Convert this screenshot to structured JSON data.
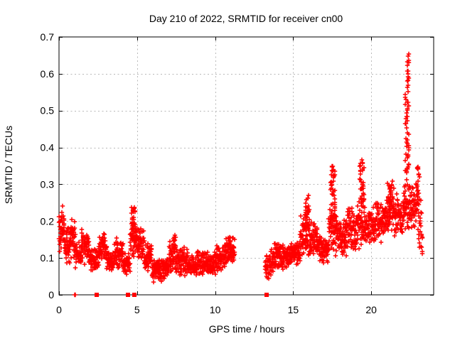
{
  "chart_data": {
    "type": "scatter",
    "title": "Day 210 of 2022, SRMTID for receiver cn00",
    "xlabel": "GPS time / hours",
    "ylabel": "SRMTID / TECUs",
    "xlim": [
      0,
      24
    ],
    "ylim": [
      0,
      0.7
    ],
    "xticks": [
      0,
      5,
      10,
      15,
      20
    ],
    "yticks": [
      0,
      0.1,
      0.2,
      0.3,
      0.4,
      0.5,
      0.6,
      0.7
    ],
    "xtick_labels": [
      "0",
      "5",
      "10",
      "15",
      "20"
    ],
    "ytick_labels": [
      "0",
      "0.1",
      "0.2",
      "0.3",
      "0.4",
      "0.5",
      "0.6",
      "0.7"
    ],
    "grid": true,
    "legend": "none",
    "marker": {
      "glyph": "plus",
      "color": "#ff0000",
      "size": 6.4
    },
    "grid_color": "#b9b9b9",
    "border_color": "#000000",
    "data_gap_hours": [
      11.25,
      13.2
    ],
    "seed": 42,
    "bands": [
      [
        0.0,
        0.35,
        0.1,
        0.25,
        45
      ],
      [
        0.35,
        0.7,
        0.08,
        0.19,
        40
      ],
      [
        0.7,
        1.05,
        0.09,
        0.21,
        40
      ],
      [
        1.05,
        1.45,
        0.07,
        0.15,
        45
      ],
      [
        1.45,
        1.95,
        0.08,
        0.18,
        55
      ],
      [
        1.95,
        2.55,
        0.06,
        0.13,
        65
      ],
      [
        2.55,
        3.05,
        0.08,
        0.17,
        55
      ],
      [
        3.05,
        3.55,
        0.06,
        0.12,
        55
      ],
      [
        3.55,
        4.1,
        0.07,
        0.16,
        60
      ],
      [
        4.1,
        4.55,
        0.05,
        0.12,
        50
      ],
      [
        4.55,
        5.0,
        0.09,
        0.22,
        50
      ],
      [
        5.0,
        5.45,
        0.09,
        0.19,
        50
      ],
      [
        5.45,
        5.95,
        0.06,
        0.14,
        55
      ],
      [
        5.95,
        6.55,
        0.03,
        0.1,
        65
      ],
      [
        6.55,
        7.05,
        0.04,
        0.11,
        55
      ],
      [
        7.05,
        7.65,
        0.05,
        0.15,
        65
      ],
      [
        7.65,
        8.25,
        0.05,
        0.13,
        65
      ],
      [
        8.25,
        8.85,
        0.04,
        0.11,
        65
      ],
      [
        8.85,
        9.45,
        0.05,
        0.13,
        65
      ],
      [
        9.45,
        10.05,
        0.05,
        0.12,
        65
      ],
      [
        10.05,
        10.65,
        0.06,
        0.14,
        65
      ],
      [
        10.65,
        11.25,
        0.07,
        0.16,
        65
      ],
      [
        13.2,
        13.75,
        0.04,
        0.13,
        55
      ],
      [
        13.75,
        14.35,
        0.06,
        0.15,
        65
      ],
      [
        14.35,
        14.95,
        0.07,
        0.14,
        65
      ],
      [
        14.95,
        15.45,
        0.08,
        0.15,
        55
      ],
      [
        15.45,
        16.05,
        0.1,
        0.22,
        65
      ],
      [
        16.05,
        16.55,
        0.1,
        0.2,
        55
      ],
      [
        16.55,
        17.25,
        0.08,
        0.16,
        75
      ],
      [
        17.25,
        17.85,
        0.1,
        0.24,
        65
      ],
      [
        17.85,
        18.45,
        0.1,
        0.22,
        65
      ],
      [
        18.45,
        19.05,
        0.11,
        0.26,
        65
      ],
      [
        19.05,
        19.65,
        0.12,
        0.28,
        65
      ],
      [
        19.65,
        20.25,
        0.13,
        0.25,
        65
      ],
      [
        20.25,
        20.85,
        0.14,
        0.26,
        65
      ],
      [
        20.85,
        21.45,
        0.15,
        0.29,
        65
      ],
      [
        21.45,
        22.05,
        0.15,
        0.28,
        65
      ],
      [
        22.05,
        22.55,
        0.17,
        0.32,
        60
      ],
      [
        22.55,
        23.0,
        0.17,
        0.33,
        50
      ],
      [
        23.0,
        23.3,
        0.1,
        0.3,
        25
      ]
    ],
    "spikes": [
      [
        4.75,
        0.12,
        0.16,
        0.24,
        30
      ],
      [
        7.4,
        0.1,
        0.12,
        0.17,
        15
      ],
      [
        10.9,
        0.1,
        0.12,
        0.16,
        12
      ],
      [
        15.9,
        0.12,
        0.18,
        0.27,
        30
      ],
      [
        17.55,
        0.15,
        0.2,
        0.35,
        40
      ],
      [
        19.4,
        0.12,
        0.24,
        0.37,
        35
      ],
      [
        21.2,
        0.15,
        0.25,
        0.31,
        25
      ],
      [
        22.3,
        0.12,
        0.33,
        0.55,
        40
      ],
      [
        22.35,
        0.06,
        0.55,
        0.665,
        18
      ],
      [
        23.0,
        0.08,
        0.25,
        0.35,
        15
      ]
    ],
    "baseline_markers": {
      "plus_t": [
        0.98,
        1.06
      ],
      "square_t": [
        2.4,
        4.43,
        4.82,
        13.3
      ]
    }
  }
}
